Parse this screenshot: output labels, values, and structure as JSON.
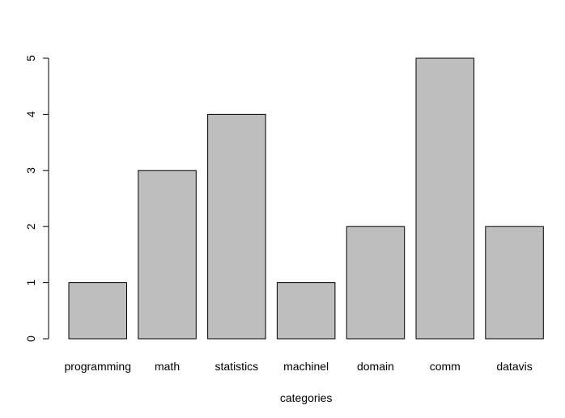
{
  "chart_data": {
    "type": "bar",
    "categories": [
      "programming",
      "math",
      "statistics",
      "machinel",
      "domain",
      "comm",
      "datavis"
    ],
    "values": [
      1,
      3,
      4,
      1,
      2,
      5,
      2
    ],
    "title": "",
    "xlabel": "categories",
    "ylabel": "",
    "ylim": [
      0,
      5
    ],
    "yticks": [
      "0",
      "1",
      "2",
      "3",
      "4",
      "5"
    ],
    "grid": false,
    "colors": {
      "bar_fill": "#bebebe",
      "bar_stroke": "#000000"
    }
  }
}
